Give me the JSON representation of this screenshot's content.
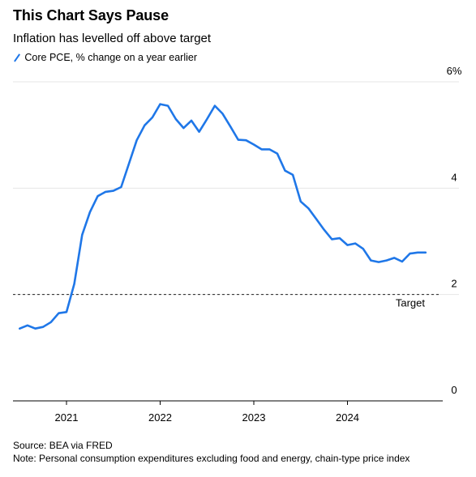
{
  "header": {
    "title": "This Chart Says Pause",
    "subtitle": "Inflation has levelled off above target"
  },
  "legend": {
    "items": [
      {
        "label": "Core PCE, % change on a year earlier",
        "color": "#1f77e8"
      }
    ]
  },
  "footer": {
    "source": "Source: BEA via FRED",
    "note": "Note: Personal consumption expenditures excluding food and energy, chain-type price index"
  },
  "chart_data": {
    "type": "line",
    "title": "This Chart Says Pause",
    "subtitle": "Inflation has levelled off above target",
    "xlabel": "",
    "ylabel": "",
    "x_ticks": [
      "2021",
      "2022",
      "2023",
      "2024"
    ],
    "y_ticks": [
      "0",
      "2",
      "4",
      "6%"
    ],
    "ylim": [
      0,
      6
    ],
    "grid": "horizontal",
    "legend_position": "top-left",
    "reference_line": {
      "y": 2,
      "label": "Target",
      "style": "dashed"
    },
    "series": [
      {
        "name": "Core PCE, % change on a year earlier",
        "color": "#1f77e8",
        "x": [
          "2020-07",
          "2020-08",
          "2020-09",
          "2020-10",
          "2020-11",
          "2020-12",
          "2021-01",
          "2021-02",
          "2021-03",
          "2021-04",
          "2021-05",
          "2021-06",
          "2021-07",
          "2021-08",
          "2021-09",
          "2021-10",
          "2021-11",
          "2021-12",
          "2022-01",
          "2022-02",
          "2022-03",
          "2022-04",
          "2022-05",
          "2022-06",
          "2022-07",
          "2022-08",
          "2022-09",
          "2022-10",
          "2022-11",
          "2022-12",
          "2023-01",
          "2023-02",
          "2023-03",
          "2023-04",
          "2023-05",
          "2023-06",
          "2023-07",
          "2023-08",
          "2023-09",
          "2023-10",
          "2023-11",
          "2023-12",
          "2024-01",
          "2024-02",
          "2024-03",
          "2024-04",
          "2024-05",
          "2024-06",
          "2024-07",
          "2024-08",
          "2024-09",
          "2024-10",
          "2024-11"
        ],
        "values": [
          1.36,
          1.42,
          1.36,
          1.39,
          1.48,
          1.65,
          1.67,
          2.2,
          3.12,
          3.55,
          3.85,
          3.93,
          3.95,
          4.02,
          4.46,
          4.9,
          5.18,
          5.33,
          5.58,
          5.55,
          5.3,
          5.13,
          5.27,
          5.06,
          5.3,
          5.55,
          5.4,
          5.16,
          4.91,
          4.9,
          4.82,
          4.73,
          4.73,
          4.65,
          4.33,
          4.25,
          3.75,
          3.62,
          3.42,
          3.22,
          3.04,
          3.06,
          2.93,
          2.96,
          2.86,
          2.64,
          2.61,
          2.64,
          2.69,
          2.62,
          2.77,
          2.79,
          2.79
        ]
      }
    ]
  }
}
